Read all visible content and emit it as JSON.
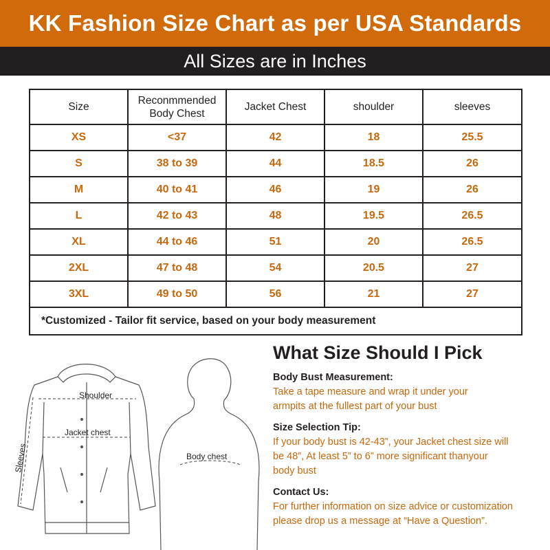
{
  "header": {
    "title": "KK Fashion Size Chart as per USA Standards",
    "subtitle": "All Sizes are in Inches"
  },
  "table": {
    "columns": [
      "Size",
      "Reconmmended Body Chest",
      "Jacket Chest",
      "shoulder",
      "sleeves"
    ],
    "rows": [
      [
        "XS",
        "<37",
        "42",
        "18",
        "25.5"
      ],
      [
        "S",
        "38 to 39",
        "44",
        "18.5",
        "26"
      ],
      [
        "M",
        "40 to 41",
        "46",
        "19",
        "26"
      ],
      [
        "L",
        "42 to 43",
        "48",
        "19.5",
        "26.5"
      ],
      [
        "XL",
        "44 to 46",
        "51",
        "20",
        "26.5"
      ],
      [
        "2XL",
        "47 to 48",
        "54",
        "20.5",
        "27"
      ],
      [
        "3XL",
        "49 to 50",
        "56",
        "21",
        "27"
      ]
    ],
    "note": "*Customized - Tailor fit service, based on your body measurement"
  },
  "illustration": {
    "shoulder_label": "Shoulder",
    "jacket_chest_label": "Jacket chest",
    "sleeves_label": "Sleeves",
    "body_chest_label": "Body chest"
  },
  "advice": {
    "title": "What Size Should I Pick",
    "sections": [
      {
        "heading": "Body Bust Measurement:",
        "lines": [
          "Take a tape measure and wrap it under your",
          "armpits at the fullest part of your bust"
        ]
      },
      {
        "heading": "Size Selection Tip:",
        "lines": [
          "If your body bust is 42-43”, your Jacket chest size will",
          "be 48”, At least 5” to 6” more significant thanyour",
          "body bust"
        ]
      },
      {
        "heading": "Contact Us:",
        "lines": [
          "For further information on size advice or customization",
          "please drop us a message at “Have a Question”."
        ]
      }
    ]
  },
  "colors": {
    "accent_orange": "#d06a0a",
    "value_orange": "#c8680d",
    "dark_band": "#231f20"
  }
}
